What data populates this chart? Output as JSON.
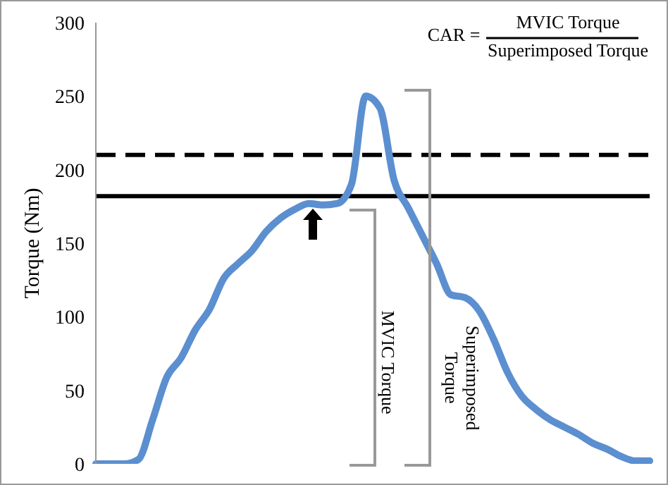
{
  "chart_data": {
    "type": "line",
    "ylabel": "Torque (Nm)",
    "categories": [
      null,
      null,
      null,
      null,
      null,
      null,
      null,
      null,
      null,
      null,
      null,
      null,
      null,
      null,
      null,
      null,
      null,
      null,
      null,
      null,
      null,
      null,
      null,
      null,
      null,
      null,
      null,
      null,
      null,
      null,
      null,
      null,
      null,
      null,
      null,
      null,
      null,
      null,
      null,
      null
    ],
    "series": [
      {
        "color": "#5b8fd0",
        "values": [
          0,
          0,
          0,
          3,
          30,
          59,
          72,
          91,
          105,
          126,
          136,
          145,
          158,
          167,
          173,
          177,
          176,
          177,
          190,
          250,
          242,
          193,
          174,
          155,
          136,
          115,
          113,
          104,
          85,
          62,
          46,
          37,
          30,
          25,
          20,
          14,
          10,
          5,
          2,
          2
        ]
      }
    ],
    "ylim": [
      0,
      300
    ],
    "yticks": [
      0,
      50,
      100,
      150,
      200,
      250,
      300
    ],
    "grid": false,
    "legend": false,
    "marker": "none",
    "line_style": "solid",
    "tick_labels": "y",
    "ref_lines": [
      {
        "axis": "y",
        "value": 210,
        "color": "#000000",
        "line_style": "dashed"
      },
      {
        "axis": "y",
        "value": 182,
        "color": "#000000",
        "line_style": "solid"
      }
    ],
    "annotations": [
      "CAR =",
      "MVIC Torque",
      "Superimposed Torque",
      "MVIC Torque",
      "Superimposed Torque"
    ]
  }
}
